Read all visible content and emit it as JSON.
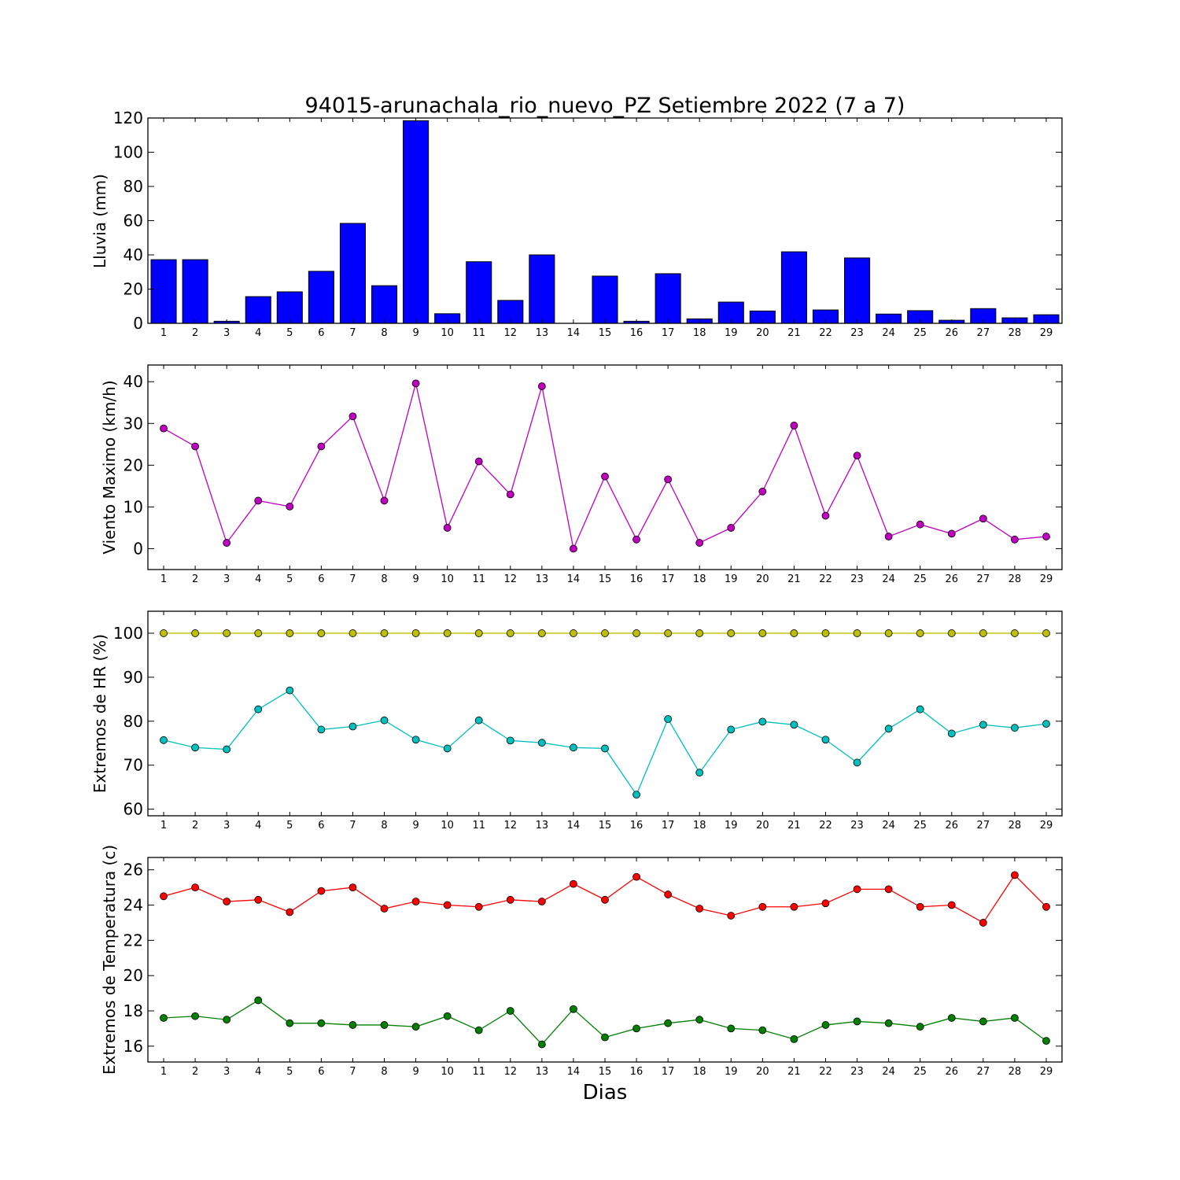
{
  "chart_data": [
    {
      "type": "bar",
      "title": "94015-arunachala_rio_nuevo_PZ Setiembre 2022  (7 a 7)",
      "ylabel": "Lluvia (mm)",
      "xlabel": "",
      "categories": [
        "1",
        "2",
        "3",
        "4",
        "5",
        "6",
        "7",
        "8",
        "9",
        "10",
        "11",
        "12",
        "13",
        "14",
        "15",
        "16",
        "17",
        "18",
        "19",
        "20",
        "21",
        "22",
        "23",
        "24",
        "25",
        "26",
        "27",
        "28",
        "29"
      ],
      "values": [
        37.2,
        37.2,
        1.2,
        15.6,
        18.4,
        30.4,
        58.4,
        22.0,
        118.4,
        5.6,
        36.0,
        13.4,
        40.0,
        0.0,
        27.6,
        1.2,
        29.0,
        2.6,
        12.4,
        7.2,
        41.8,
        7.8,
        38.2,
        5.4,
        7.4,
        1.8,
        8.6,
        3.2,
        5.0
      ],
      "ylim": [
        0,
        120
      ],
      "yticks": [
        0,
        20,
        40,
        60,
        80,
        100,
        120
      ],
      "colors": {
        "bar": "#0000ff",
        "edge": "#000000"
      },
      "grid": false
    },
    {
      "type": "line",
      "title": "",
      "ylabel": "Viento Maximo (km/h)",
      "xlabel": "",
      "x": [
        1,
        2,
        3,
        4,
        5,
        6,
        7,
        8,
        9,
        10,
        11,
        12,
        13,
        14,
        15,
        16,
        17,
        18,
        19,
        20,
        21,
        22,
        23,
        24,
        25,
        26,
        27,
        28,
        29
      ],
      "series": [
        {
          "values": [
            28.8,
            24.5,
            1.4,
            11.5,
            10.1,
            24.5,
            31.7,
            11.5,
            39.6,
            5.0,
            20.9,
            13.0,
            38.9,
            0.0,
            17.3,
            2.2,
            16.6,
            1.4,
            5.0,
            13.7,
            29.5,
            7.9,
            22.3,
            2.9,
            5.8,
            3.6,
            7.2,
            2.2,
            2.9
          ],
          "color": "#bf00bf"
        }
      ],
      "ylim": [
        -5,
        44
      ],
      "yticks": [
        0,
        10,
        20,
        30,
        40
      ],
      "grid": false
    },
    {
      "type": "line",
      "title": "",
      "ylabel": "Extremos de HR (%)",
      "xlabel": "",
      "x": [
        1,
        2,
        3,
        4,
        5,
        6,
        7,
        8,
        9,
        10,
        11,
        12,
        13,
        14,
        15,
        16,
        17,
        18,
        19,
        20,
        21,
        22,
        23,
        24,
        25,
        26,
        27,
        28,
        29
      ],
      "series": [
        {
          "values": [
            100,
            100,
            100,
            100,
            100,
            100,
            100,
            100,
            100,
            100,
            100,
            100,
            100,
            100,
            100,
            100,
            100,
            100,
            100,
            100,
            100,
            100,
            100,
            100,
            100,
            100,
            100,
            100,
            100
          ],
          "color": "#bfbf00"
        },
        {
          "values": [
            75.7,
            74.0,
            73.6,
            82.7,
            87.0,
            78.1,
            78.8,
            80.2,
            75.8,
            73.8,
            80.2,
            75.6,
            75.1,
            74.0,
            73.8,
            63.3,
            80.5,
            68.3,
            78.1,
            79.9,
            79.2,
            75.8,
            70.6,
            78.3,
            82.7,
            77.2,
            79.2,
            78.5,
            79.4
          ],
          "color": "#00bfbf"
        }
      ],
      "ylim": [
        58.5,
        105
      ],
      "yticks": [
        60,
        70,
        80,
        90,
        100
      ],
      "grid": false
    },
    {
      "type": "line",
      "title": "",
      "ylabel": "Extremos de Temperatura (c)",
      "xlabel": "Dias",
      "x": [
        1,
        2,
        3,
        4,
        5,
        6,
        7,
        8,
        9,
        10,
        11,
        12,
        13,
        14,
        15,
        16,
        17,
        18,
        19,
        20,
        21,
        22,
        23,
        24,
        25,
        26,
        27,
        28,
        29
      ],
      "series": [
        {
          "values": [
            24.5,
            25.0,
            24.2,
            24.3,
            23.6,
            24.8,
            25.0,
            23.8,
            24.2,
            24.0,
            23.9,
            24.3,
            24.2,
            25.2,
            24.3,
            25.6,
            24.6,
            23.8,
            23.4,
            23.9,
            23.9,
            24.1,
            24.9,
            24.9,
            23.9,
            24.0,
            23.0,
            25.7,
            23.9
          ],
          "color": "#ff0000"
        },
        {
          "values": [
            17.6,
            17.7,
            17.5,
            18.6,
            17.3,
            17.3,
            17.2,
            17.2,
            17.1,
            17.7,
            16.9,
            18.0,
            16.1,
            18.1,
            16.5,
            17.0,
            17.3,
            17.5,
            17.0,
            16.9,
            16.4,
            17.2,
            17.4,
            17.3,
            17.1,
            17.6,
            17.4,
            17.6,
            16.3
          ],
          "color": "#008000"
        }
      ],
      "ylim": [
        15.1,
        26.7
      ],
      "yticks": [
        16,
        18,
        20,
        22,
        24,
        26
      ],
      "grid": false
    }
  ]
}
